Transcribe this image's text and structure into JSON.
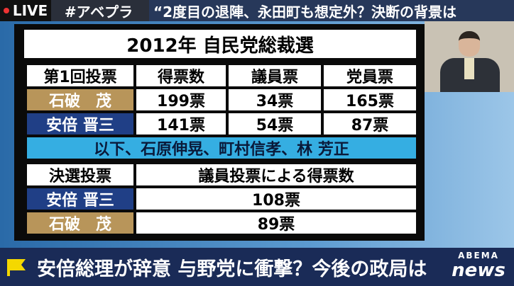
{
  "header": {
    "live": "LIVE",
    "hashtag": "#アベプラ",
    "headline": "“2度目の退陣、永田町も想定外？決断の背景は"
  },
  "table": {
    "title": "2012年 自民党総裁選",
    "first_round": {
      "header": [
        "第1回投票",
        "得票数",
        "議員票",
        "党員票"
      ],
      "rows": [
        [
          "石破　茂",
          "199票",
          "34票",
          "165票"
        ],
        [
          "安倍 晋三",
          "141票",
          "54票",
          "87票"
        ]
      ],
      "note": "以下、石原伸晃、町村信孝、林 芳正"
    },
    "runoff": {
      "header": [
        "決選投票",
        "議員投票による得票数"
      ],
      "rows": [
        [
          "安倍 晋三",
          "108票"
        ],
        [
          "石破　茂",
          "89票"
        ]
      ]
    }
  },
  "footer": {
    "caption": "安倍総理が辞意 与野党に衝撃？今後の政局は",
    "logo_top": "ABEMA",
    "logo_bottom": "news"
  }
}
